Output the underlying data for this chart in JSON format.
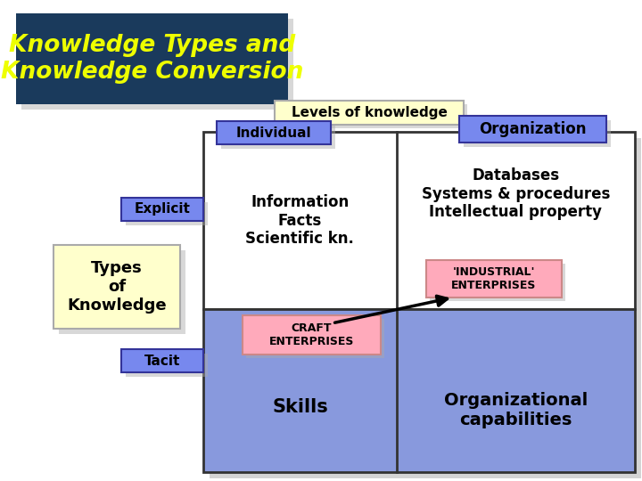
{
  "title_text": "Knowledge Types and\nKnowledge Conversion",
  "title_bg": "#1a3a5c",
  "title_fg": "#eeff00",
  "bg_color": "#ffffff",
  "levels_label": "Levels of knowledge",
  "levels_bg": "#ffffcc",
  "levels_border": "#aaaaaa",
  "individual_label": "Individual",
  "individual_bg": "#7788ee",
  "organization_label": "Organization",
  "organization_bg": "#7788ee",
  "explicit_label": "Explicit",
  "explicit_bg": "#7788ee",
  "types_label": "Types\nof\nKnowledge",
  "types_bg": "#ffffcc",
  "tacit_label": "Tacit",
  "tacit_bg": "#7788ee",
  "grid_bg_top": "#ffffff",
  "grid_bg_bottom": "#8899dd",
  "cell_tl_text": "Information\nFacts\nScientific kn.",
  "cell_tr_text": "Databases\nSystems & procedures\nIntellectual property",
  "industrial_text": "'INDUSTRIAL'\nENTERPRISES",
  "industrial_bg": "#ffaabb",
  "craft_text": "CRAFT\nENTERPRISES",
  "craft_bg": "#ffaabb",
  "cell_bl_text": "Skills",
  "cell_br_text": "Organizational\ncapabilities",
  "shadow_color": "#aaaaaa",
  "grid_border": "#333333",
  "label_border": "#333399"
}
